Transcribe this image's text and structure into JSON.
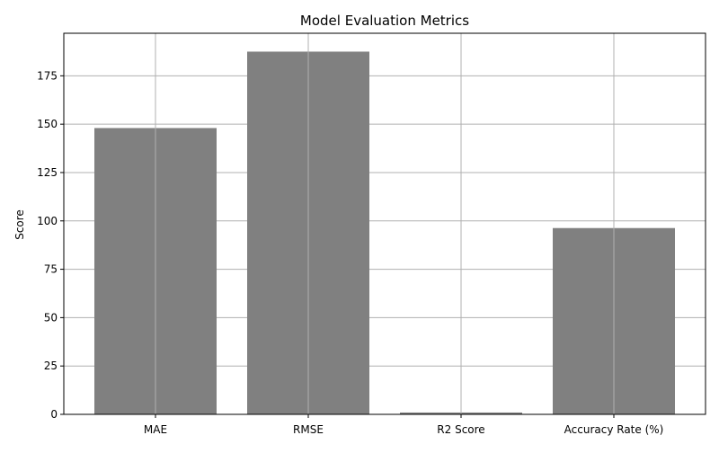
{
  "chart_data": {
    "type": "bar",
    "title": "Model Evaluation Metrics",
    "xlabel": "",
    "ylabel": "Score",
    "categories": [
      "MAE",
      "RMSE",
      "R2 Score",
      "Accuracy Rate (%)"
    ],
    "values": [
      148,
      187.5,
      0.95,
      96.3
    ],
    "ylim": [
      0,
      197
    ],
    "yticks": [
      0,
      25,
      50,
      75,
      100,
      125,
      150,
      175
    ],
    "grid": true,
    "bar_color": "#808080",
    "grid_color": "#b0b0b0"
  }
}
